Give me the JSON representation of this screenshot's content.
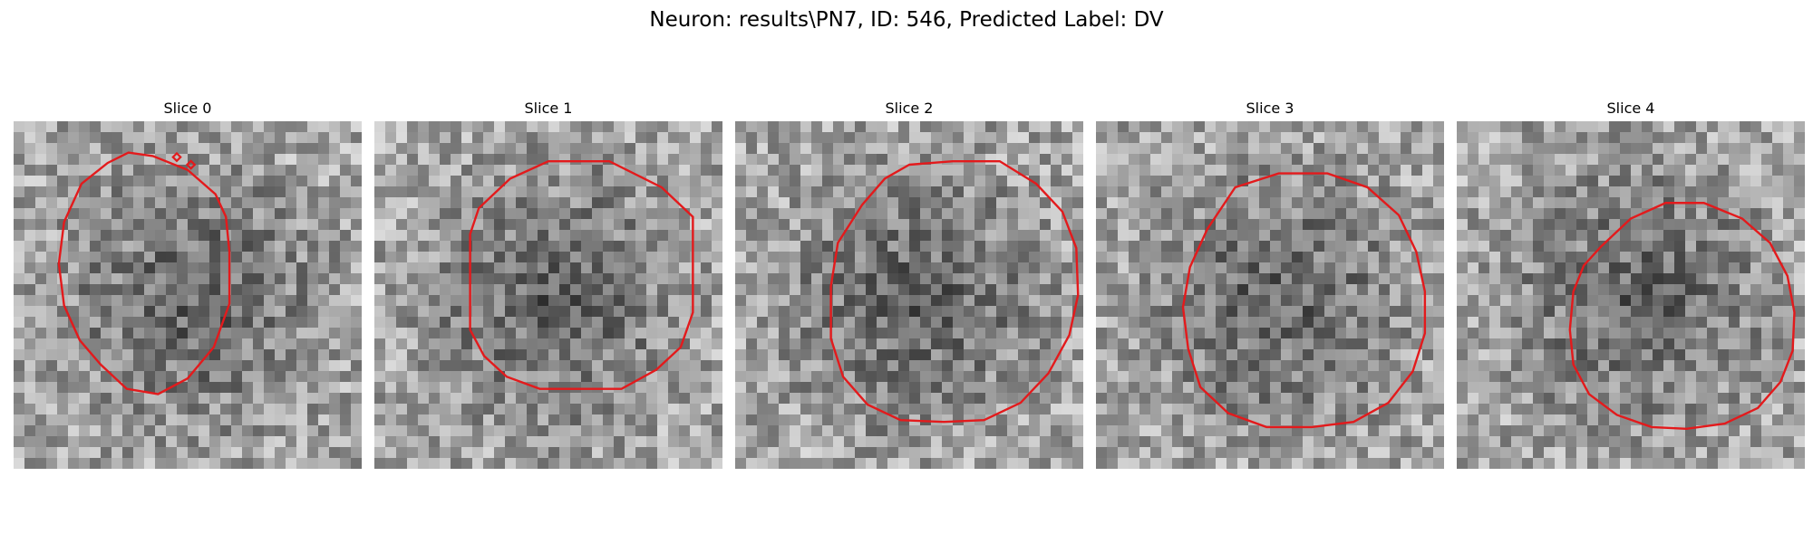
{
  "figure": {
    "title": "Neuron: results\\PN7, ID: 546, Predicted Label: DV",
    "contour_color": "#e31a1c",
    "colormap": "gray"
  },
  "panels": [
    {
      "title": "Slice 0"
    },
    {
      "title": "Slice 1"
    },
    {
      "title": "Slice 2"
    },
    {
      "title": "Slice 3"
    },
    {
      "title": "Slice 4"
    }
  ]
}
